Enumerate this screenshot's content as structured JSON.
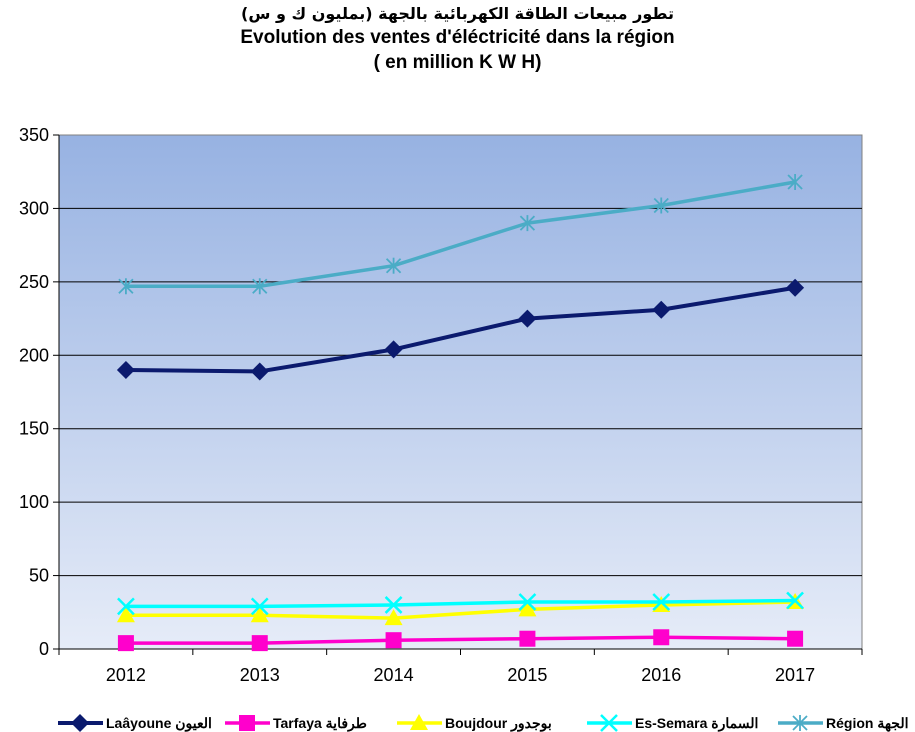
{
  "title": {
    "line1": "تطور مبيعات الطاقة الكهربائية  بالجهة (بمليون ك و س)",
    "line2": "Evolution des ventes d'éléctricité dans la région",
    "line3": "( en million K W H)"
  },
  "chart_data": {
    "type": "line",
    "categories": [
      "2012",
      "2013",
      "2014",
      "2015",
      "2016",
      "2017"
    ],
    "ylim": [
      0,
      350
    ],
    "yticks": [
      "0",
      "50",
      "100",
      "150",
      "200",
      "250",
      "300",
      "350"
    ],
    "grid": true,
    "legend_position": "bottom",
    "series": [
      {
        "name": "Laâyoune العيون",
        "color": "#0B1A6E",
        "marker": "diamond",
        "values": [
          190,
          189,
          204,
          225,
          231,
          246
        ]
      },
      {
        "name": "Tarfaya طرفاية",
        "color": "#FF00CC",
        "marker": "square",
        "values": [
          4,
          4,
          6,
          7,
          8,
          7
        ]
      },
      {
        "name": "Boujdour بوجدور",
        "color": "#FFFF00",
        "marker": "triangle",
        "values": [
          23,
          23,
          21,
          27,
          30,
          32
        ]
      },
      {
        "name": "Es-Semara السمارة",
        "color": "#00FFFF",
        "marker": "x",
        "values": [
          29,
          29,
          30,
          32,
          32,
          33
        ]
      },
      {
        "name": "Région الجهة",
        "color": "#4BACC6",
        "marker": "star",
        "values": [
          247,
          247,
          261,
          290,
          302,
          318
        ]
      }
    ]
  }
}
